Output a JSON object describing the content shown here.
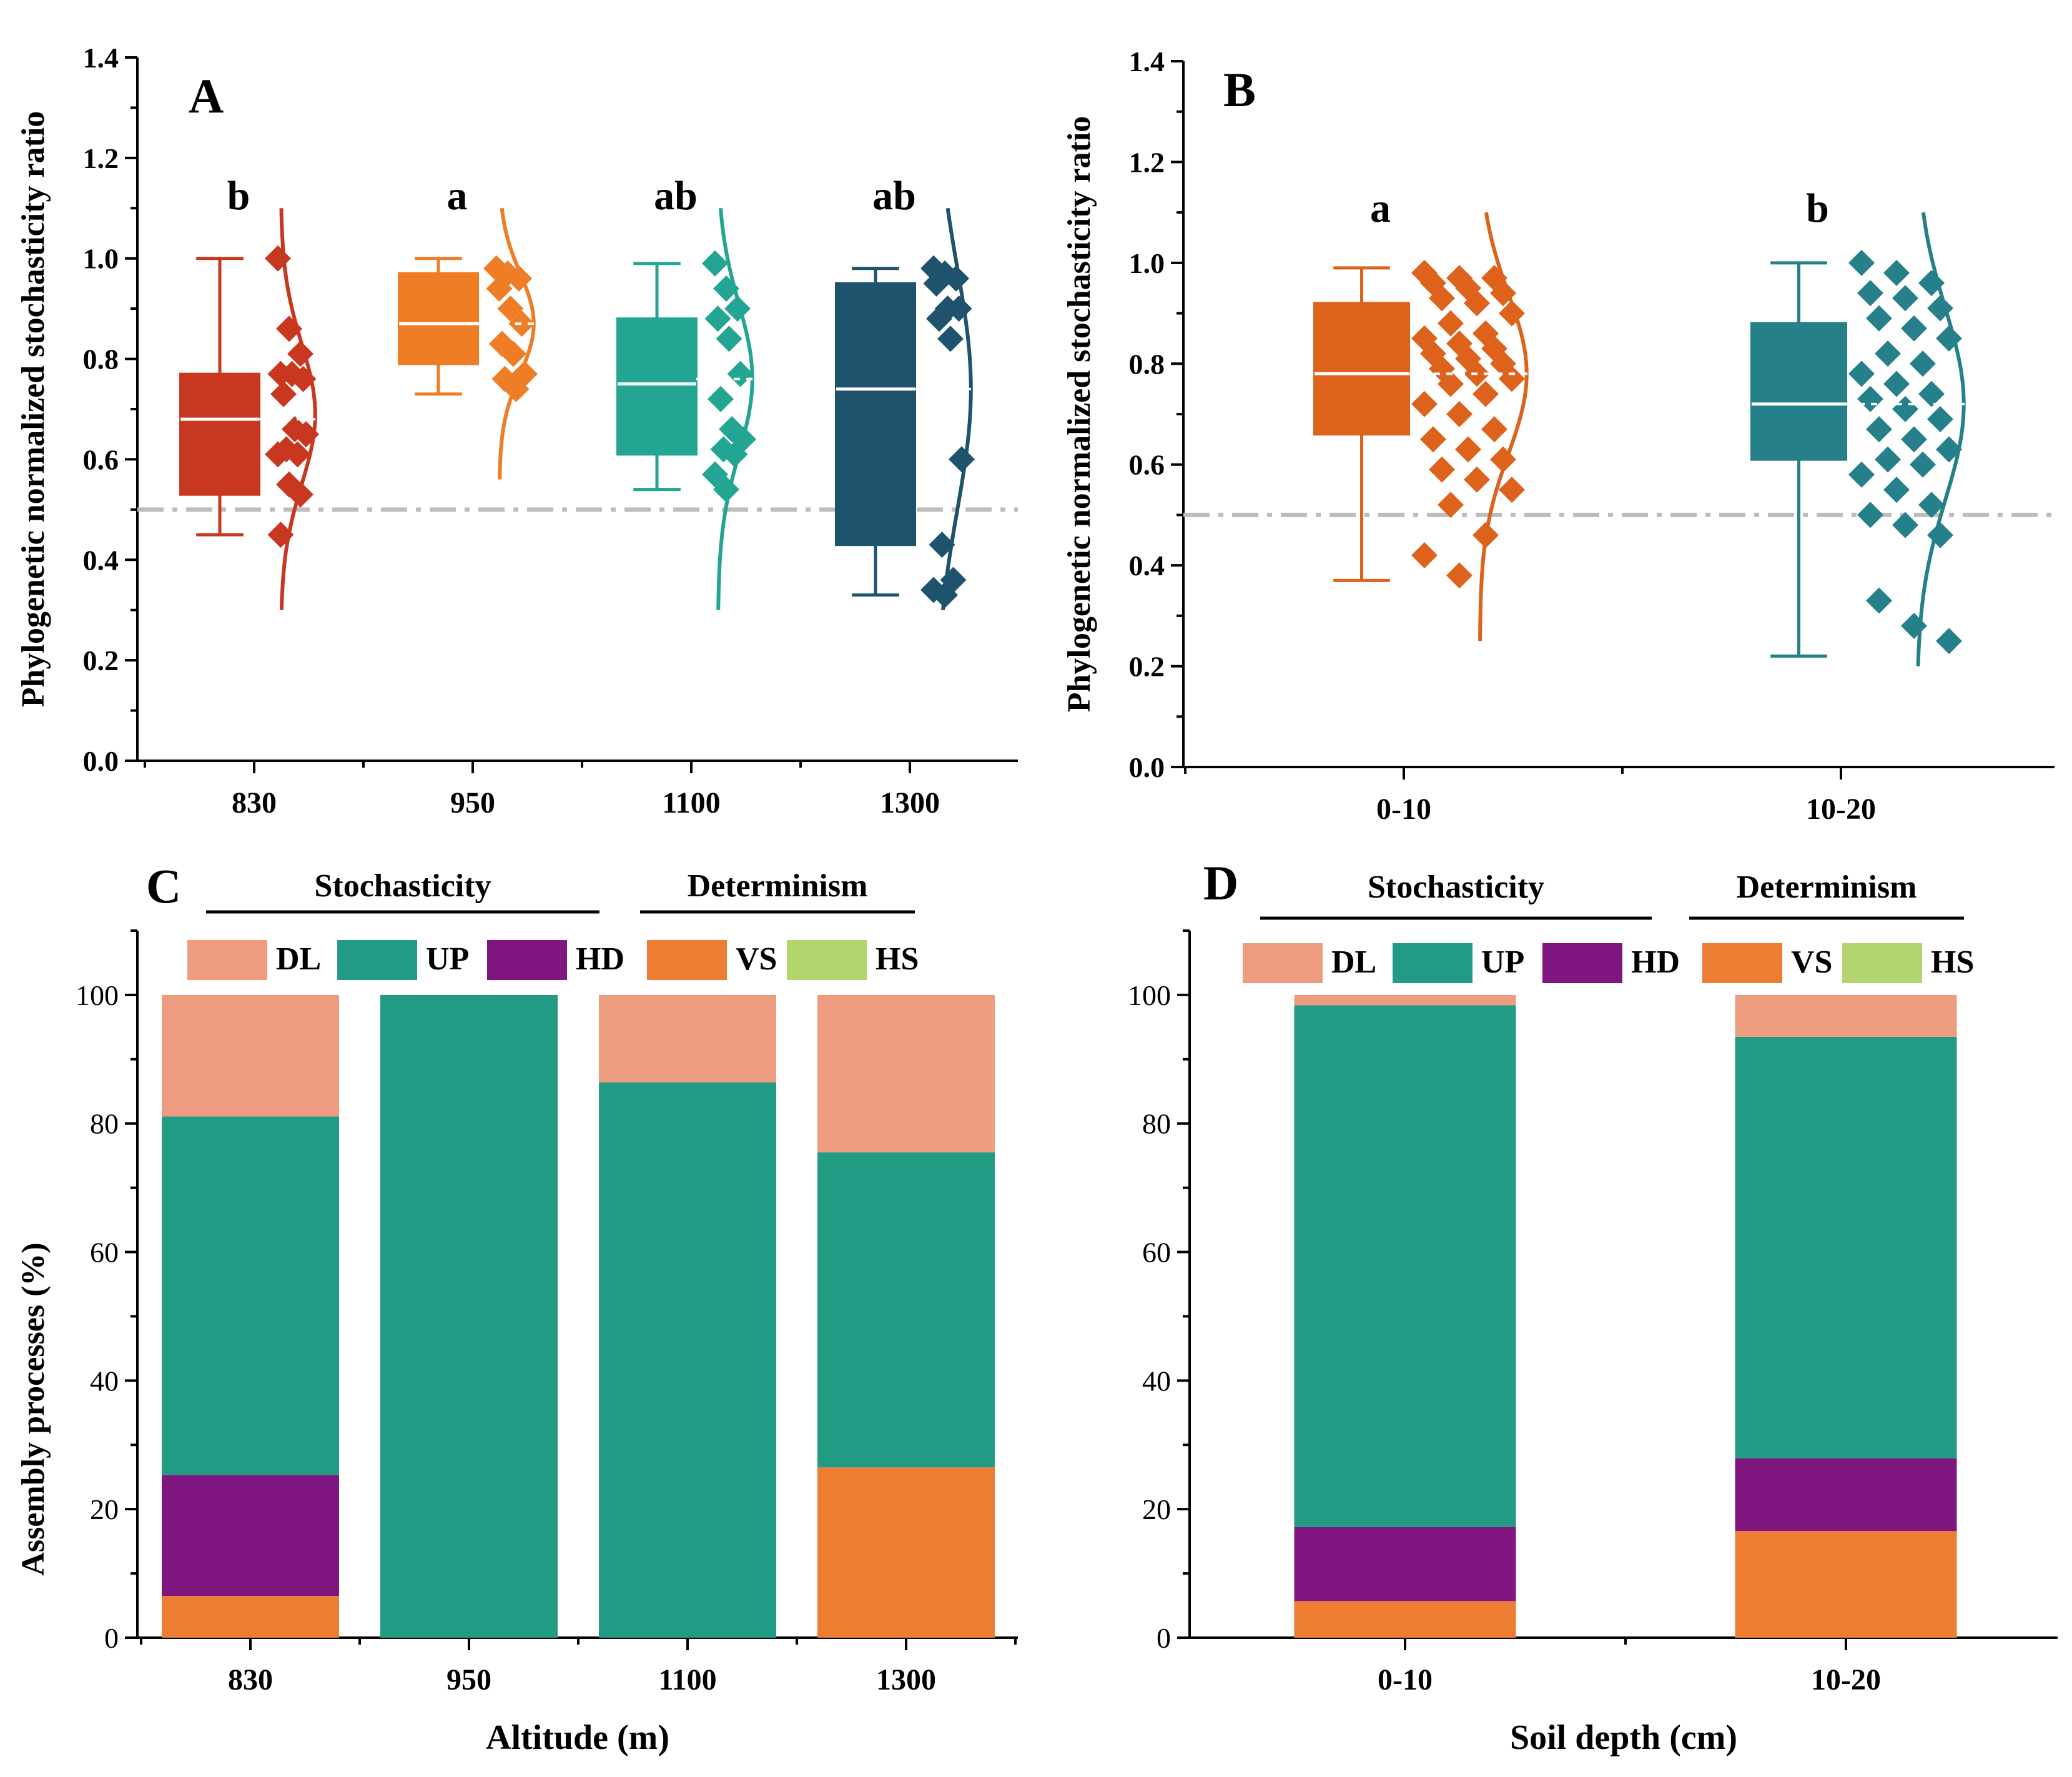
{
  "chart_data": [
    {
      "panel": "A",
      "type": "box",
      "ylabel": "Phylogenetic normalized stochasticity ratio",
      "ylim": [
        0,
        1.4
      ],
      "yticks": [
        "0.0",
        "0.2",
        "0.4",
        "0.6",
        "0.8",
        "1.0",
        "1.2",
        "1.4"
      ],
      "reference_line": 0.5,
      "categories": [
        "830",
        "950",
        "1100",
        "1300"
      ],
      "groups": [
        {
          "label": "830",
          "color": "#C8371F",
          "letter": "b",
          "min": 0.45,
          "q1": 0.53,
          "median": 0.68,
          "mean": 0.68,
          "q3": 0.77,
          "max": 1.0,
          "points": [
            1.0,
            0.86,
            0.81,
            0.77,
            0.77,
            0.76,
            0.73,
            0.66,
            0.65,
            0.62,
            0.61,
            0.61,
            0.55,
            0.53,
            0.45
          ],
          "curve": {
            "mean": 0.69,
            "sd": 0.14,
            "low": 0.3,
            "high": 1.1
          }
        },
        {
          "label": "950",
          "color": "#EE7D25",
          "letter": "a",
          "min": 0.73,
          "q1": 0.79,
          "median": 0.87,
          "mean": 0.87,
          "q3": 0.97,
          "max": 1.0,
          "points": [
            0.98,
            0.97,
            0.96,
            0.94,
            0.9,
            0.87,
            0.83,
            0.81,
            0.77,
            0.76,
            0.74
          ],
          "curve": {
            "mean": 0.87,
            "sd": 0.1,
            "low": 0.56,
            "high": 1.1
          }
        },
        {
          "label": "1100",
          "color": "#23A593",
          "letter": "ab",
          "min": 0.54,
          "q1": 0.61,
          "median": 0.75,
          "mean": 0.76,
          "q3": 0.88,
          "max": 0.99,
          "points": [
            0.99,
            0.94,
            0.9,
            0.88,
            0.84,
            0.77,
            0.72,
            0.66,
            0.64,
            0.62,
            0.61,
            0.57,
            0.54
          ],
          "curve": {
            "mean": 0.76,
            "sd": 0.15,
            "low": 0.3,
            "high": 1.1
          }
        },
        {
          "label": "1300",
          "color": "#1F526D",
          "letter": "ab",
          "min": 0.33,
          "q1": 0.43,
          "median": 0.74,
          "mean": 0.74,
          "q3": 0.95,
          "max": 0.98,
          "points": [
            0.98,
            0.97,
            0.96,
            0.95,
            0.9,
            0.9,
            0.88,
            0.84,
            0.6,
            0.43,
            0.36,
            0.34,
            0.33
          ],
          "curve": {
            "mean": 0.74,
            "sd": 0.24,
            "low": 0.3,
            "high": 1.1
          }
        }
      ]
    },
    {
      "panel": "B",
      "type": "box",
      "ylabel": "Phylogenetic normalized stochasticity ratio",
      "ylim": [
        0,
        1.4
      ],
      "yticks": [
        "0.0",
        "0.2",
        "0.4",
        "0.6",
        "0.8",
        "1.0",
        "1.2",
        "1.4"
      ],
      "reference_line": 0.5,
      "categories": [
        "0-10",
        "10-20"
      ],
      "groups": [
        {
          "label": "0-10",
          "color": "#DD631C",
          "letter": "a",
          "min": 0.37,
          "q1": 0.66,
          "median": 0.78,
          "mean": 0.78,
          "q3": 0.92,
          "max": 0.99,
          "points": [
            0.98,
            0.97,
            0.97,
            0.96,
            0.95,
            0.94,
            0.93,
            0.92,
            0.9,
            0.88,
            0.86,
            0.85,
            0.84,
            0.83,
            0.82,
            0.81,
            0.8,
            0.79,
            0.78,
            0.77,
            0.76,
            0.74,
            0.72,
            0.7,
            0.67,
            0.65,
            0.63,
            0.61,
            0.59,
            0.57,
            0.55,
            0.52,
            0.46,
            0.42,
            0.38
          ],
          "curve": {
            "mean": 0.78,
            "sd": 0.16,
            "low": 0.25,
            "high": 1.1
          }
        },
        {
          "label": "10-20",
          "color": "#26808A",
          "letter": "b",
          "min": 0.22,
          "q1": 0.61,
          "median": 0.72,
          "mean": 0.72,
          "q3": 0.88,
          "max": 1.0,
          "points": [
            1.0,
            0.98,
            0.96,
            0.94,
            0.93,
            0.91,
            0.89,
            0.87,
            0.85,
            0.82,
            0.8,
            0.78,
            0.76,
            0.74,
            0.73,
            0.71,
            0.69,
            0.67,
            0.65,
            0.63,
            0.61,
            0.6,
            0.58,
            0.55,
            0.52,
            0.5,
            0.48,
            0.46,
            0.33,
            0.28,
            0.25
          ],
          "curve": {
            "mean": 0.72,
            "sd": 0.19,
            "low": 0.2,
            "high": 1.1
          }
        }
      ]
    },
    {
      "panel": "C",
      "type": "stacked_bar",
      "xlabel": "Altitude (m)",
      "ylabel": "Assembly processes (%)",
      "ylim": [
        0,
        110
      ],
      "yticks": [
        "0",
        "20",
        "40",
        "60",
        "80",
        "100"
      ],
      "categories": [
        "830",
        "950",
        "1100",
        "1300"
      ],
      "bracket_stochasticity": "Stochasticity",
      "bracket_determinism": "Determinism",
      "legend": [
        "DL",
        "UP",
        "HD",
        "VS",
        "HS"
      ],
      "series": [
        {
          "name": "VS",
          "color": "#EE7D34",
          "values": [
            6.5,
            0,
            0,
            26.5
          ]
        },
        {
          "name": "HD",
          "color": "#7F167F",
          "values": [
            18.8,
            0,
            0,
            0
          ]
        },
        {
          "name": "UP",
          "color": "#229B84",
          "values": [
            55.8,
            100,
            86.4,
            49
          ]
        },
        {
          "name": "DL",
          "color": "#EE9C80",
          "values": [
            18.9,
            0,
            13.6,
            24.5
          ]
        },
        {
          "name": "HS",
          "color": "#B2D56E",
          "values": [
            0,
            0,
            0,
            0
          ]
        }
      ]
    },
    {
      "panel": "D",
      "type": "stacked_bar",
      "xlabel": "Soil depth (cm)",
      "ylabel": "Assembly processes (%)",
      "ylim": [
        0,
        110
      ],
      "yticks": [
        "0",
        "20",
        "40",
        "60",
        "80",
        "100"
      ],
      "categories": [
        "0-10",
        "10-20"
      ],
      "bracket_stochasticity": "Stochasticity",
      "bracket_determinism": "Determinism",
      "legend": [
        "DL",
        "UP",
        "HD",
        "VS",
        "HS"
      ],
      "series": [
        {
          "name": "VS",
          "color": "#EE7D34",
          "values": [
            5.7,
            16.6
          ]
        },
        {
          "name": "HD",
          "color": "#7F167F",
          "values": [
            11.5,
            11.3
          ]
        },
        {
          "name": "UP",
          "color": "#229B84",
          "values": [
            81.2,
            65.6
          ]
        },
        {
          "name": "DL",
          "color": "#EE9C80",
          "values": [
            1.6,
            6.5
          ]
        },
        {
          "name": "HS",
          "color": "#B2D56E",
          "values": [
            0,
            0
          ]
        }
      ]
    }
  ]
}
